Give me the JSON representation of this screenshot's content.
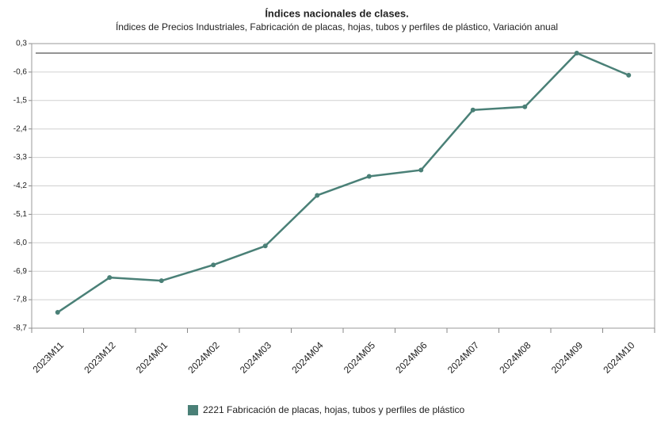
{
  "chart_data": {
    "type": "line",
    "title": "Índices nacionales de clases.",
    "subtitle": "Índices de Precios Industriales, Fabricación de placas, hojas, tubos y perfiles de plástico, Variación anual",
    "categories": [
      "2023M11",
      "2023M12",
      "2024M01",
      "2024M02",
      "2024M03",
      "2024M04",
      "2024M05",
      "2024M06",
      "2024M07",
      "2024M08",
      "2024M09",
      "2024M10"
    ],
    "series": [
      {
        "name": "2221 Fabricación de placas, hojas, tubos y perfiles de plástico",
        "color": "#4a8077",
        "values": [
          -8.2,
          -7.1,
          -7.2,
          -6.7,
          -6.1,
          -4.5,
          -3.9,
          -3.7,
          -1.8,
          -1.7,
          0.0,
          -0.7
        ]
      }
    ],
    "ylim": [
      -8.7,
      0.3
    ],
    "yticks": [
      {
        "value": 0.3,
        "label": "0,3"
      },
      {
        "value": -0.6,
        "label": "-0,6"
      },
      {
        "value": -1.5,
        "label": "-1,5"
      },
      {
        "value": -2.4,
        "label": "-2,4"
      },
      {
        "value": -3.3,
        "label": "-3,3"
      },
      {
        "value": -4.2,
        "label": "-4,2"
      },
      {
        "value": -5.1,
        "label": "-5,1"
      },
      {
        "value": -6.0,
        "label": "-6,0"
      },
      {
        "value": -6.9,
        "label": "-6,9"
      },
      {
        "value": -7.8,
        "label": "-7,8"
      },
      {
        "value": -8.7,
        "label": "-8,7"
      }
    ],
    "grid": true,
    "legend": "bottom"
  }
}
